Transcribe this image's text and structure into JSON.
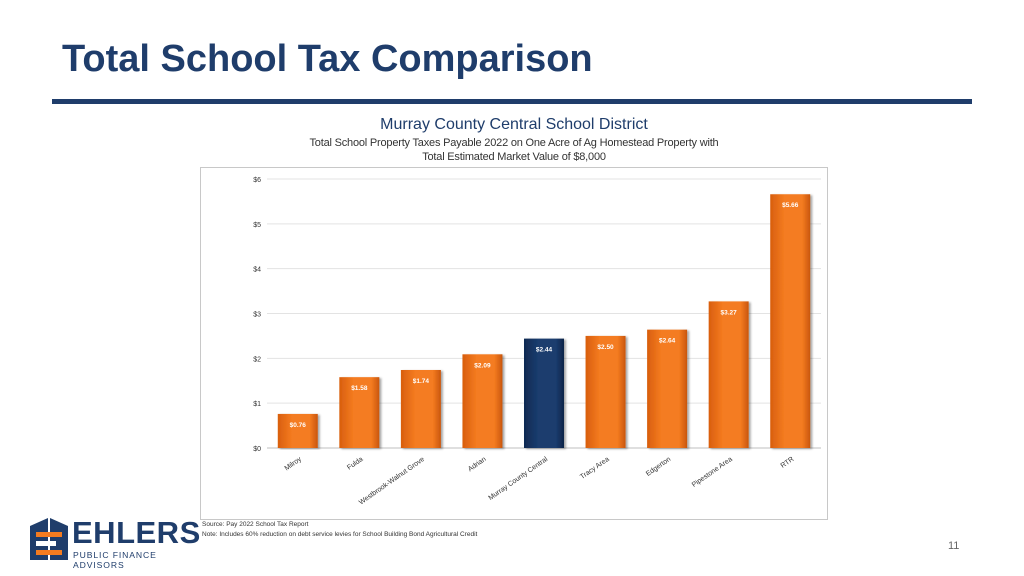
{
  "slide": {
    "title": "Total School Tax Comparison",
    "page_number": "11"
  },
  "logo": {
    "name": "EHLERS",
    "tagline": "PUBLIC FINANCE ADVISORS"
  },
  "footer": {
    "source": "Source: Pay 2022 School Tax Report",
    "note": "Note: Includes 60% reduction on debt service levies for School Building Bond Agricultural Credit"
  },
  "colors": {
    "title": "#1f3d6b",
    "bar_default": "#f47b20",
    "bar_highlight": "#1a3c6e"
  },
  "chart_data": {
    "type": "bar",
    "title": "Murray County Central School District",
    "subtitle_lines": [
      "Total School Property Taxes Payable 2022 on One Acre of Ag Homestead Property with",
      "Total Estimated Market Value of $8,000"
    ],
    "categories": [
      "Milroy",
      "Fulda",
      "Westbrook-Walnut Grove",
      "Adrian",
      "Murray County Central",
      "Tracy Area",
      "Edgerton",
      "Pipestone Area",
      "RTR"
    ],
    "values": [
      0.76,
      1.58,
      1.74,
      2.09,
      2.44,
      2.5,
      2.64,
      3.27,
      5.66
    ],
    "data_labels": [
      "$0.76",
      "$1.58",
      "$1.74",
      "$2.09",
      "$2.44",
      "$2.50",
      "$2.64",
      "$3.27",
      "$5.66"
    ],
    "highlight_category": "Murray County Central",
    "y_ticks": [
      "$0",
      "$1",
      "$2",
      "$3",
      "$4",
      "$5",
      "$6"
    ],
    "ylim": [
      0,
      6
    ],
    "grid": true,
    "legend": false
  }
}
